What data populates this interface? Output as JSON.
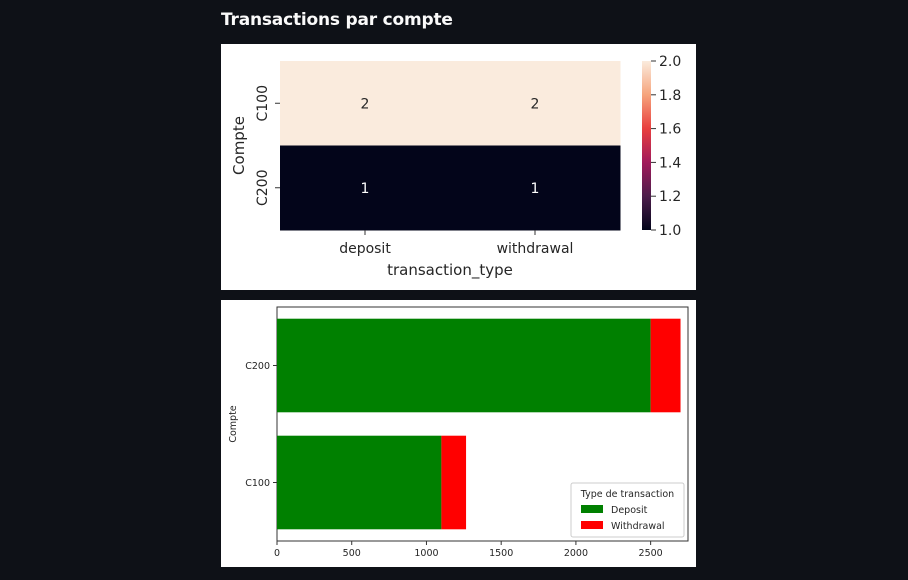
{
  "page": {
    "title": "Transactions par compte"
  },
  "chart_data": [
    {
      "type": "heatmap",
      "xlabel": "transaction_type",
      "ylabel": "Compte",
      "x_categories": [
        "deposit",
        "withdrawal"
      ],
      "y_categories": [
        "C100",
        "C200"
      ],
      "values": [
        [
          2,
          2
        ],
        [
          1,
          1
        ]
      ],
      "colorbar": {
        "range": [
          1.0,
          2.0
        ],
        "ticks": [
          "1.0",
          "1.2",
          "1.4",
          "1.6",
          "1.8",
          "2.0"
        ]
      },
      "colormap": [
        "#03051a",
        "#4c1d4b",
        "#a11a5b",
        "#e83f3f",
        "#f6a47c",
        "#faebdd"
      ]
    },
    {
      "type": "bar",
      "orientation": "horizontal",
      "stacked": true,
      "ylabel": "Compte",
      "categories": [
        "C100",
        "C200"
      ],
      "series": [
        {
          "name": "Deposit",
          "color": "#008000",
          "values": [
            1100,
            2500
          ]
        },
        {
          "name": "Withdrawal",
          "color": "#ff0000",
          "values": [
            165,
            200
          ]
        }
      ],
      "xlim": [
        0,
        2750
      ],
      "xticks": [
        "0",
        "500",
        "1000",
        "1500",
        "2000",
        "2500"
      ],
      "legend": {
        "title": "Type de transaction",
        "position": "lower-right"
      }
    }
  ]
}
